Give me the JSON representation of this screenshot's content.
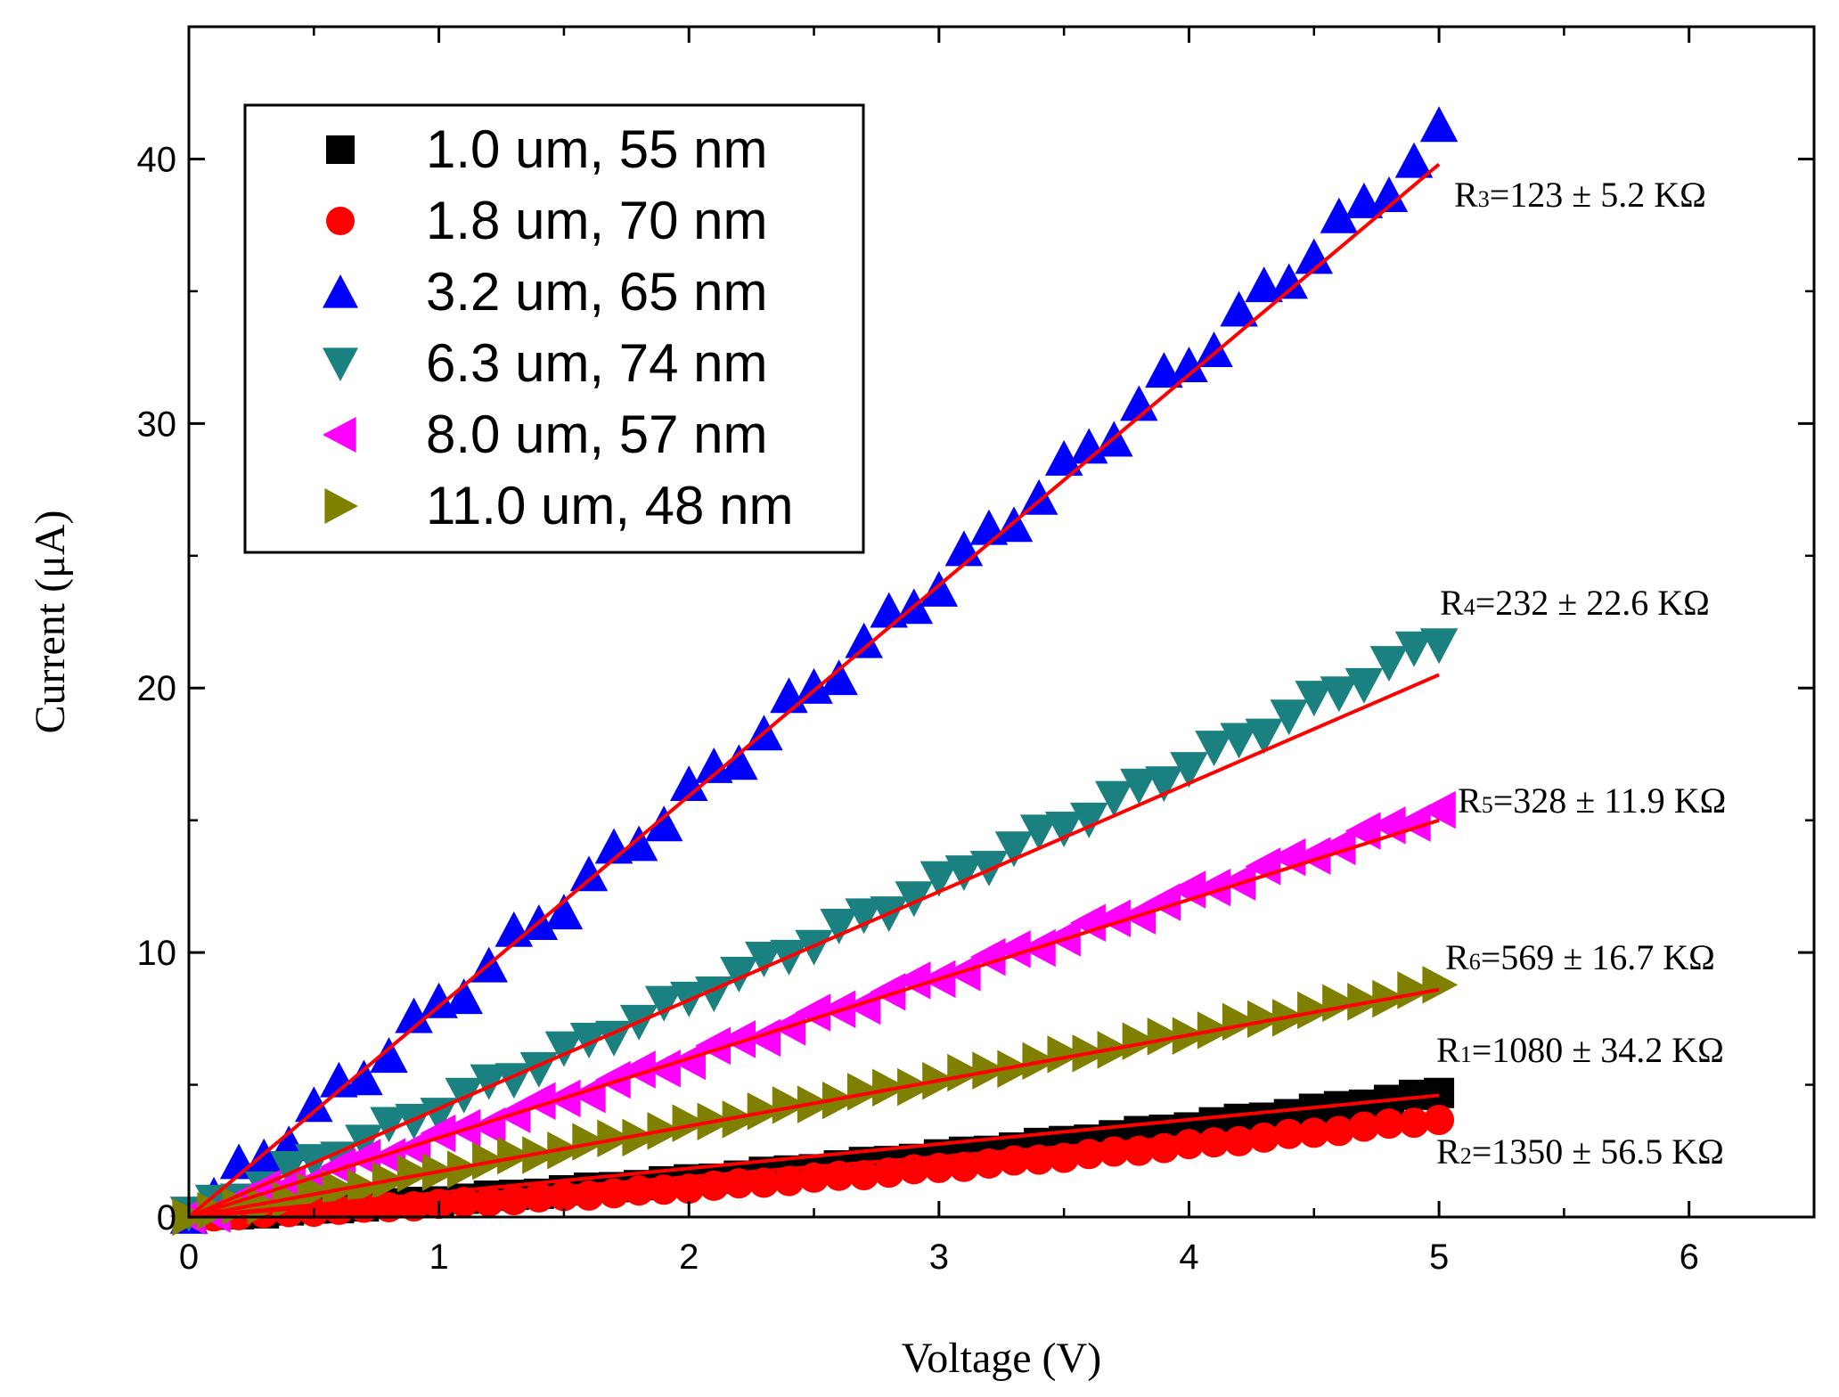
{
  "chart_data": {
    "type": "scatter",
    "title": "",
    "xlabel": "Voltage (V)",
    "ylabel": "Current (μA)",
    "xlim": [
      0,
      6.5
    ],
    "ylim": [
      0,
      45
    ],
    "xticks": [
      0,
      1,
      2,
      3,
      4,
      5,
      6
    ],
    "yticks": [
      0,
      10,
      20,
      30,
      40
    ],
    "x_tick_labels": [
      "0",
      "1",
      "2",
      "3",
      "4",
      "5",
      "6"
    ],
    "y_tick_labels": [
      "0",
      "10",
      "20",
      "30",
      "40"
    ],
    "grid": false,
    "legend_position": "top-left",
    "x_start": 0,
    "x_step": 0.1,
    "x_count": 51,
    "series": [
      {
        "name": "1.0 um, 55 nm",
        "marker": "square",
        "color": "#000000",
        "fit_start": [
          0,
          0
        ],
        "fit_end": [
          5.0,
          4.6
        ],
        "end_value": 4.7,
        "resistance": {
          "prefix": "R",
          "sub": "1",
          "text": "=1080 ± 34.2 KΩ"
        }
      },
      {
        "name": "1.8 um, 70 nm",
        "marker": "circle",
        "color": "#ff0000",
        "fit_start": [
          0,
          0
        ],
        "fit_end": [
          5.0,
          3.8
        ],
        "end_value": 3.7,
        "resistance": {
          "prefix": "R",
          "sub": "2",
          "text": "=1350 ± 56.5 KΩ"
        }
      },
      {
        "name": "3.2 um, 65 nm",
        "marker": "triangle-up",
        "color": "#0000ff",
        "fit_start": [
          0,
          0
        ],
        "fit_end": [
          5.0,
          39.8
        ],
        "end_value": 40.8,
        "resistance": {
          "prefix": "R",
          "sub": "3",
          "text": "=123 ± 5.2 KΩ"
        }
      },
      {
        "name": "6.3 um, 74 nm",
        "marker": "triangle-down",
        "color": "#1a8080",
        "fit_start": [
          0,
          0
        ],
        "fit_end": [
          5.0,
          20.5
        ],
        "end_value": 21.8,
        "resistance": {
          "prefix": "R",
          "sub": "4",
          "text": "=232 ± 22.6 KΩ"
        }
      },
      {
        "name": "8.0 um, 57 nm",
        "marker": "triangle-left",
        "color": "#ff00ff",
        "fit_start": [
          0,
          0
        ],
        "fit_end": [
          5.0,
          15.0
        ],
        "end_value": 15.4,
        "resistance": {
          "prefix": "R",
          "sub": "5",
          "text": "=328 ± 11.9 KΩ"
        }
      },
      {
        "name": "11.0 um, 48 nm",
        "marker": "triangle-right",
        "color": "#808000",
        "fit_start": [
          0,
          0
        ],
        "fit_end": [
          5.0,
          8.6
        ],
        "end_value": 8.7,
        "resistance": {
          "prefix": "R",
          "sub": "6",
          "text": "=569 ± 16.7 KΩ"
        }
      }
    ],
    "fit_line_color": "#ff0000"
  }
}
